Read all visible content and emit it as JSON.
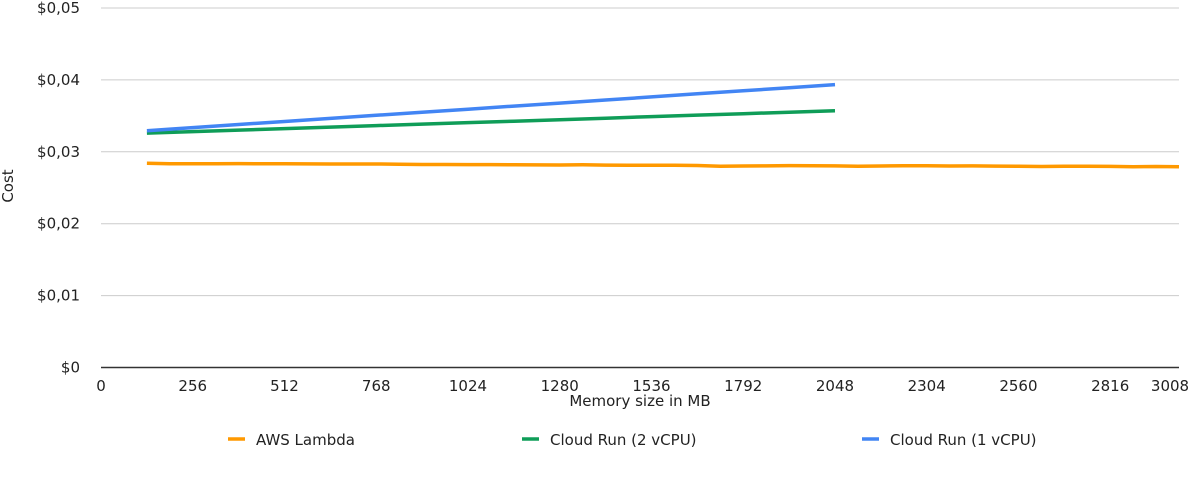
{
  "chart_data": {
    "type": "line",
    "title": "",
    "xlabel": "Memory size in MB",
    "ylabel": "Cost",
    "xlim": [
      0,
      3008
    ],
    "ylim": [
      0,
      0.05
    ],
    "x_ticks": [
      0,
      256,
      512,
      768,
      1024,
      1280,
      1536,
      1792,
      2048,
      2304,
      2560,
      2816,
      3008
    ],
    "y_ticks": [
      0,
      0.01,
      0.02,
      0.03,
      0.04,
      0.05
    ],
    "y_tick_labels": [
      "$0",
      "$0,01",
      "$0,02",
      "$0,03",
      "$0,04",
      "$0,05"
    ],
    "grid": "horizontal",
    "legend_position": "bottom",
    "series": [
      {
        "name": "AWS Lambda",
        "color": "#ff9900",
        "x": [
          128,
          192,
          256,
          320,
          384,
          448,
          512,
          576,
          640,
          704,
          768,
          832,
          896,
          960,
          1024,
          1088,
          1152,
          1216,
          1280,
          1344,
          1408,
          1472,
          1536,
          1600,
          1664,
          1728,
          1792,
          1856,
          1920,
          1984,
          2048,
          2112,
          2176,
          2240,
          2304,
          2368,
          2432,
          2496,
          2560,
          2624,
          2688,
          2752,
          2816,
          2880,
          2944,
          3008
        ],
        "values": [
          0.0284,
          0.02835,
          0.02834,
          0.02834,
          0.02836,
          0.02833,
          0.02833,
          0.02832,
          0.0283,
          0.0283,
          0.02831,
          0.02828,
          0.02824,
          0.02823,
          0.02822,
          0.02822,
          0.02819,
          0.02818,
          0.02817,
          0.02819,
          0.02815,
          0.02814,
          0.02812,
          0.02812,
          0.0281,
          0.028,
          0.02803,
          0.02804,
          0.02808,
          0.02806,
          0.02804,
          0.028,
          0.02803,
          0.02806,
          0.02805,
          0.02802,
          0.02804,
          0.02801,
          0.028,
          0.02796,
          0.02799,
          0.02798,
          0.02797,
          0.02792,
          0.02795,
          0.02791
        ]
      },
      {
        "name": "Cloud Run (2 vCPU)",
        "color": "#0f9d58",
        "x": [
          128,
          256,
          384,
          512,
          640,
          768,
          896,
          1024,
          1152,
          1280,
          1408,
          1536,
          1664,
          1792,
          1920,
          2048
        ],
        "values": [
          0.0326,
          0.03281,
          0.03302,
          0.03322,
          0.03343,
          0.03364,
          0.03385,
          0.03406,
          0.03426,
          0.03447,
          0.03468,
          0.03489,
          0.0351,
          0.0353,
          0.03551,
          0.03572
        ]
      },
      {
        "name": "Cloud Run (1 vCPU)",
        "color": "#4285f4",
        "x": [
          128,
          256,
          384,
          512,
          640,
          768,
          896,
          1024,
          1152,
          1280,
          1408,
          1536,
          1664,
          1792,
          1920,
          2048
        ],
        "values": [
          0.03293,
          0.03336,
          0.03379,
          0.03421,
          0.03464,
          0.03507,
          0.0355,
          0.03593,
          0.03635,
          0.03678,
          0.03721,
          0.03764,
          0.03807,
          0.03849,
          0.03892,
          0.03935
        ]
      }
    ]
  }
}
